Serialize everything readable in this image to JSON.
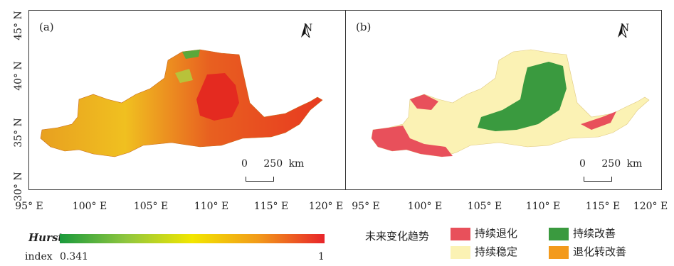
{
  "panel_a": {
    "label": "(a)",
    "north": "N",
    "scale": {
      "zero": "0",
      "value": "250",
      "unit": "km"
    }
  },
  "panel_b": {
    "label": "(b)",
    "north": "N",
    "scale": {
      "zero": "0",
      "value": "250",
      "unit": "km"
    }
  },
  "axes": {
    "x_ticks_a": [
      "95° E",
      "100° E",
      "105° E",
      "110° E",
      "115° E",
      "120° E"
    ],
    "x_ticks_b": [
      "95° E",
      "100° E",
      "105° E",
      "110° E",
      "115° E",
      "120° E"
    ],
    "y_ticks": [
      "45° N",
      "40° N",
      "35° N",
      "30° N"
    ]
  },
  "legend_a": {
    "title": "Hurst",
    "index_label": "index",
    "min": "0.341",
    "max": "1",
    "colors": [
      "#1a9a3c",
      "#8fc63f",
      "#f2e600",
      "#f29a1a",
      "#e8242a"
    ]
  },
  "legend_b": {
    "title": "未来变化趋势",
    "items": [
      {
        "label": "持续退化",
        "color": "#e8505b"
      },
      {
        "label": "持续改善",
        "color": "#3a9a3f"
      },
      {
        "label": "持续稳定",
        "color": "#fbf2b4"
      },
      {
        "label": "退化转改善",
        "color": "#f39a1c"
      }
    ]
  }
}
